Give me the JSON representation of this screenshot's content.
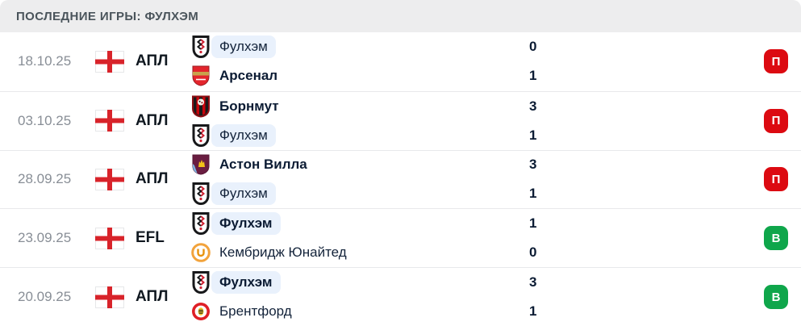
{
  "header": {
    "title": "ПОСЛЕДНИЕ ИГРЫ: ФУЛХЭМ"
  },
  "result_badges": {
    "loss_label": "П",
    "win_label": "В",
    "loss_color": "#DC0A11",
    "win_color": "#0FA64B"
  },
  "colors": {
    "header_bg": "#EDEDEE",
    "header_text": "#4A545B",
    "date_text": "#888E96",
    "team_text": "#13233A",
    "highlight_bg": "#E9F1FC",
    "divider": "#E8E9EB"
  },
  "matches": [
    {
      "date": "18.10.25",
      "league": "АПЛ",
      "league_icon": "england-flag",
      "result": "loss",
      "result_label": "П",
      "teams": [
        {
          "name": "Фулхэм",
          "logo_icon": "fulham-logo",
          "score": "0",
          "bold": false,
          "highlighted": true
        },
        {
          "name": "Арсенал",
          "logo_icon": "arsenal-logo",
          "score": "1",
          "bold": true,
          "highlighted": false
        }
      ]
    },
    {
      "date": "03.10.25",
      "league": "АПЛ",
      "league_icon": "england-flag",
      "result": "loss",
      "result_label": "П",
      "teams": [
        {
          "name": "Борнмут",
          "logo_icon": "bournemouth-logo",
          "score": "3",
          "bold": true,
          "highlighted": false
        },
        {
          "name": "Фулхэм",
          "logo_icon": "fulham-logo",
          "score": "1",
          "bold": false,
          "highlighted": true
        }
      ]
    },
    {
      "date": "28.09.25",
      "league": "АПЛ",
      "league_icon": "england-flag",
      "result": "loss",
      "result_label": "П",
      "teams": [
        {
          "name": "Астон Вилла",
          "logo_icon": "aston-villa-logo",
          "score": "3",
          "bold": true,
          "highlighted": false
        },
        {
          "name": "Фулхэм",
          "logo_icon": "fulham-logo",
          "score": "1",
          "bold": false,
          "highlighted": true
        }
      ]
    },
    {
      "date": "23.09.25",
      "league": "EFL",
      "league_icon": "england-flag",
      "result": "win",
      "result_label": "В",
      "teams": [
        {
          "name": "Фулхэм",
          "logo_icon": "fulham-logo",
          "score": "1",
          "bold": true,
          "highlighted": true
        },
        {
          "name": "Кембридж Юнайтед",
          "logo_icon": "cambridge-united-logo",
          "score": "0",
          "bold": false,
          "highlighted": false
        }
      ]
    },
    {
      "date": "20.09.25",
      "league": "АПЛ",
      "league_icon": "england-flag",
      "result": "win",
      "result_label": "В",
      "teams": [
        {
          "name": "Фулхэм",
          "logo_icon": "fulham-logo",
          "score": "3",
          "bold": true,
          "highlighted": true
        },
        {
          "name": "Брентфорд",
          "logo_icon": "brentford-logo",
          "score": "1",
          "bold": false,
          "highlighted": false
        }
      ]
    }
  ]
}
